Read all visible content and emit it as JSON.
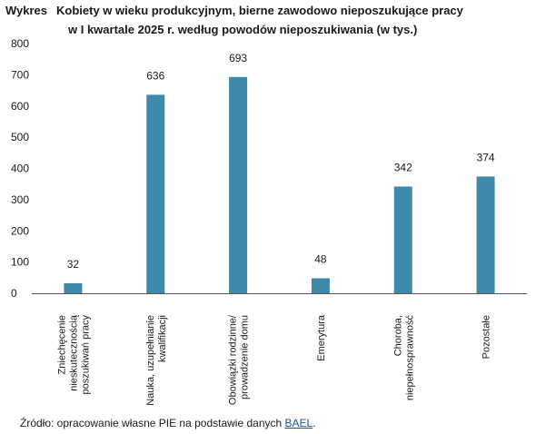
{
  "header": {
    "prefix": "Wykres",
    "title_line1": "Kobiety w wieku produkcyjnym, bierne zawodowo nieposzukujące pracy",
    "title_line2": "w I kwartale 2025 r. według powodów nieposzukiwania (w tys.)"
  },
  "colors": {
    "bar": "#3d8ba8",
    "axis": "#555555",
    "text": "#1a1a1a"
  },
  "chart_data": {
    "type": "bar",
    "title": "Kobiety w wieku produkcyjnym, bierne zawodowo nieposzukujące pracy w I kwartale 2025 r. według powodów nieposzukiwania (w tys.)",
    "categories": [
      [
        "Zniechęcenie",
        "nieskutecznością",
        "poszukiwań pracy"
      ],
      [
        "Nauka, uzupełnianie",
        "kwalifikacji"
      ],
      [
        "Obowiązki rodzinne/",
        "prowadzenie domu"
      ],
      [
        "Emerytura"
      ],
      [
        "Choroba,",
        "niepełnosprawność"
      ],
      [
        "Pozostałe"
      ]
    ],
    "values": [
      32,
      636,
      693,
      48,
      342,
      374
    ],
    "data_labels": [
      "32",
      "636",
      "693",
      "48",
      "342",
      "374"
    ],
    "yticks": [
      "0",
      "100",
      "200",
      "300",
      "400",
      "500",
      "600",
      "700",
      "800"
    ],
    "ylim": [
      0,
      800
    ],
    "grid": false,
    "legend": "none"
  },
  "footer": {
    "source_prefix": "Źródło: opracowanie własne PIE na podstawie danych ",
    "source_link": "BAEL",
    "source_suffix": "."
  }
}
